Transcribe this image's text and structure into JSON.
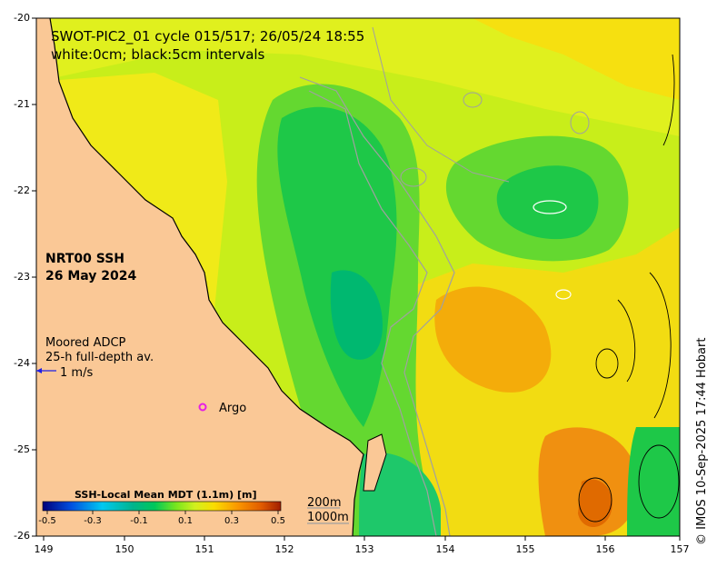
{
  "title": {
    "line1": "SWOT-PIC2_01 cycle 015/517; 26/05/24 18:55",
    "line2": "white:0cm; black:5cm intervals"
  },
  "product": {
    "line1": "NRT00 SSH",
    "line2": "26 May 2024"
  },
  "adcp_legend": {
    "line1": "Moored ADCP",
    "line2": "25-h full-depth av.",
    "scale": "1 m/s"
  },
  "argo_legend": {
    "label": "Argo",
    "marker_color": "#e61ee6"
  },
  "colorbar": {
    "title": "SSH-Local Mean MDT (1.1m) [m]",
    "range": [
      -0.5,
      0.5
    ],
    "ticks": [
      "-0.5",
      "-0.3",
      "-0.1",
      "0.1",
      "0.3",
      "0.5"
    ],
    "colors": [
      "#00007a",
      "#0050e0",
      "#00c8f0",
      "#00b48c",
      "#00c85a",
      "#78e61e",
      "#d2f01e",
      "#fadc00",
      "#fa9600",
      "#e05a00",
      "#a01e00"
    ]
  },
  "isobaths": {
    "line1": "200m",
    "line2": "1000m"
  },
  "credit": "© IMOS 10-Sep-2025 17:44 Hobart",
  "axes": {
    "x_ticks": [
      "149",
      "150",
      "151",
      "152",
      "153",
      "154",
      "155",
      "156",
      "157"
    ],
    "y_ticks": [
      "-20",
      "-21",
      "-22",
      "-23",
      "-24",
      "-25",
      "-26"
    ],
    "lon_range": [
      149,
      157
    ],
    "lat_range": [
      -26,
      -20
    ]
  },
  "colors": {
    "land": "#fac896",
    "coast": "#000000",
    "isobath": "#a0a0a0"
  }
}
